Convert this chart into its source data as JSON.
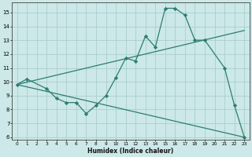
{
  "line1_x": [
    0,
    1,
    3,
    4,
    5,
    6,
    7,
    8,
    9,
    10,
    11,
    12,
    13,
    14,
    15,
    16,
    17,
    18,
    19,
    21,
    22,
    23
  ],
  "line1_y": [
    9.8,
    10.2,
    9.5,
    8.8,
    8.5,
    8.5,
    7.7,
    8.3,
    9.0,
    10.3,
    11.7,
    11.5,
    13.3,
    12.5,
    15.3,
    15.3,
    14.8,
    13.0,
    13.0,
    11.0,
    8.3,
    6.0
  ],
  "line2_x": [
    0,
    23
  ],
  "line2_y": [
    9.8,
    13.7
  ],
  "line3_x": [
    0,
    23
  ],
  "line3_y": [
    9.8,
    6.0
  ],
  "color": "#2d7d72",
  "bg_color": "#cce8e8",
  "grid_color": "#aacece",
  "xlabel": "Humidex (Indice chaleur)",
  "xlim": [
    -0.5,
    23.5
  ],
  "ylim": [
    5.8,
    15.7
  ],
  "yticks": [
    6,
    7,
    8,
    9,
    10,
    11,
    12,
    13,
    14,
    15
  ],
  "xticks": [
    0,
    1,
    2,
    3,
    4,
    5,
    6,
    7,
    8,
    9,
    10,
    11,
    12,
    13,
    14,
    15,
    16,
    17,
    18,
    19,
    20,
    21,
    22,
    23
  ]
}
